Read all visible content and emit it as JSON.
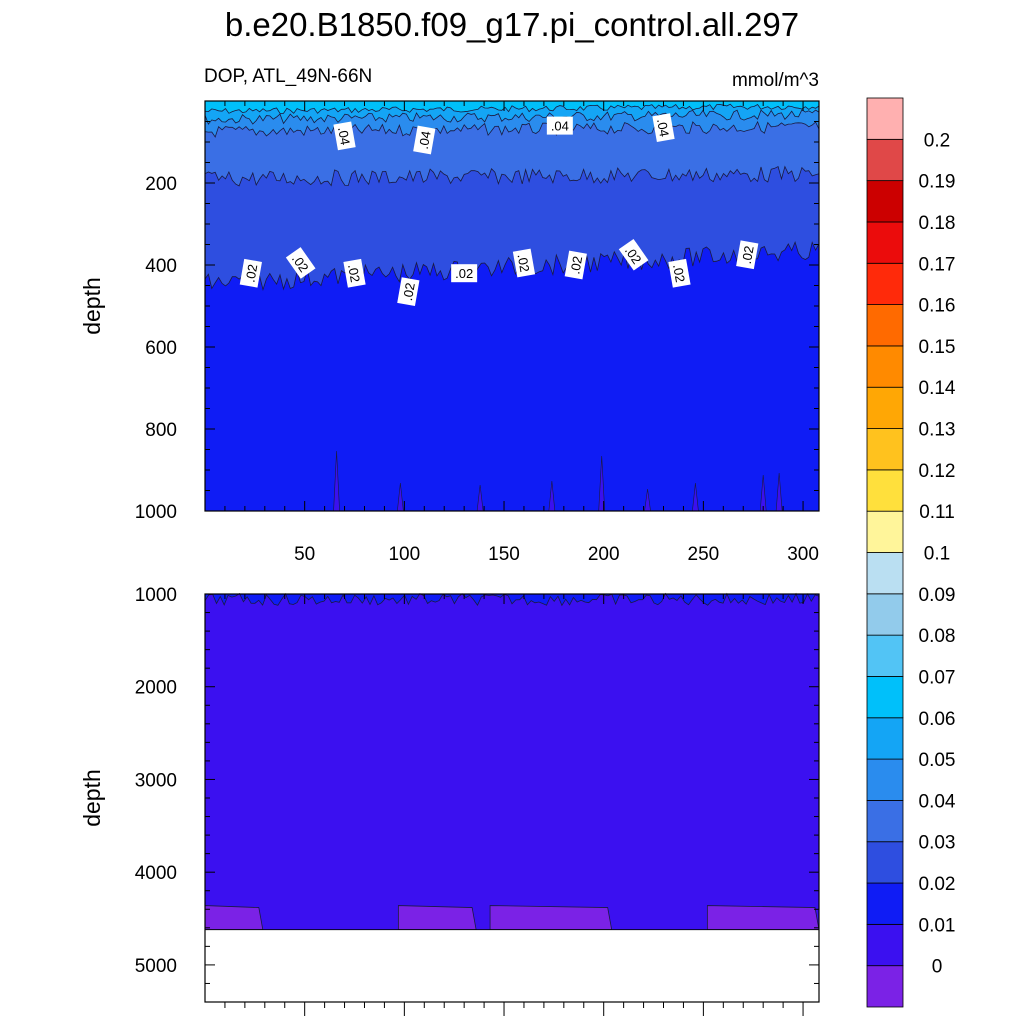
{
  "title": "b.e20.B1850.f09_g17.pi_control.all.297",
  "subtitle_left": "DOP, ATL_49N-66N",
  "subtitle_right": "mmol/m^3",
  "colors": {
    "lvl_0": "#7B22E6",
    "lvl_0_01": "#3B10F0",
    "lvl_0_02": "#0F1CF5",
    "lvl_0_03": "#2E4EE0",
    "lvl_0_04": "#3A6FE5",
    "lvl_0_05": "#2A8CEE",
    "lvl_0_06": "#14A5F5",
    "lvl_0_07": "#00C0FA"
  },
  "chart_data": [
    {
      "type": "contour",
      "panel": "upper",
      "variable": "DOP",
      "region": "ATL_49N-66N",
      "units": "mmol/m^3",
      "x_range": [
        0,
        308
      ],
      "y_range": [
        1000,
        0
      ],
      "y_inverted": true,
      "ylabel": "depth",
      "xlabel": "",
      "x_ticks": [
        50,
        100,
        150,
        200,
        250,
        300
      ],
      "y_ticks": [
        200,
        400,
        600,
        800,
        1000
      ],
      "regions": [
        {
          "value_range": "0.06-0.07",
          "depth_range": [
            0,
            25
          ]
        },
        {
          "value_range": "0.05-0.06",
          "depth_range": [
            25,
            45
          ]
        },
        {
          "value_range": "0.04-0.05",
          "depth_range": [
            45,
            75
          ]
        },
        {
          "value_range": "0.03-0.04",
          "depth_range": [
            75,
            190
          ]
        },
        {
          "value_range": "0.02-0.03",
          "depth_range": [
            190,
            400
          ]
        },
        {
          "value_range": "0.01-0.02",
          "depth_range": [
            400,
            1000
          ]
        }
      ],
      "contour_labels": [
        {
          "text": ".04",
          "x": 70,
          "depth": 85
        },
        {
          "text": ".04",
          "x": 110,
          "depth": 95
        },
        {
          "text": ".04",
          "x": 178,
          "depth": 60
        },
        {
          "text": ".04",
          "x": 230,
          "depth": 65
        },
        {
          "text": ".02",
          "x": 23,
          "depth": 420
        },
        {
          "text": ".02",
          "x": 48,
          "depth": 395
        },
        {
          "text": ".02",
          "x": 75,
          "depth": 420
        },
        {
          "text": ".02",
          "x": 102,
          "depth": 465
        },
        {
          "text": ".02",
          "x": 130,
          "depth": 420
        },
        {
          "text": ".02",
          "x": 160,
          "depth": 395
        },
        {
          "text": ".02",
          "x": 186,
          "depth": 400
        },
        {
          "text": ".02",
          "x": 215,
          "depth": 375
        },
        {
          "text": ".02",
          "x": 238,
          "depth": 420
        },
        {
          "text": ".02",
          "x": 272,
          "depth": 375
        }
      ]
    },
    {
      "type": "contour",
      "panel": "lower",
      "x_range": [
        0,
        308
      ],
      "y_range": [
        5400,
        1000
      ],
      "y_inverted": true,
      "ylabel": "depth",
      "xlabel": "",
      "y_ticks": [
        1000,
        2000,
        3000,
        4000,
        5000
      ],
      "data_bottom_depth": 4620,
      "regions": [
        {
          "value_range": "0.01-0.02",
          "depth_range": [
            1000,
            1120
          ]
        },
        {
          "value_range": "0-0.01",
          "depth_range": [
            1120,
            4620
          ]
        },
        {
          "value_range": "<0",
          "depth_range": [
            4350,
            4620
          ],
          "x_spans": [
            [
              0,
              29
            ],
            [
              97,
              136
            ],
            [
              143,
              204
            ],
            [
              252,
              308
            ]
          ]
        }
      ]
    },
    {
      "type": "colorbar",
      "levels": [
        "0",
        "0.01",
        "0.02",
        "0.03",
        "0.04",
        "0.05",
        "0.06",
        "0.07",
        "0.08",
        "0.09",
        "0.1",
        "0.11",
        "0.12",
        "0.13",
        "0.14",
        "0.15",
        "0.16",
        "0.17",
        "0.18",
        "0.19",
        "0.2"
      ],
      "colors": [
        "#7B22E6",
        "#3B10F0",
        "#0F1CF5",
        "#2E4EE0",
        "#3A6FE5",
        "#2A8CEE",
        "#14A5F5",
        "#00C0FA",
        "#52C4F5",
        "#92CBEB",
        "#BADFF2",
        "#FFF59A",
        "#FFE03C",
        "#FFC21E",
        "#FFA705",
        "#FF8A00",
        "#FF6A00",
        "#FF2A0A",
        "#EB0C0C",
        "#CC0000",
        "#E04848",
        "#FFB0B0"
      ]
    }
  ]
}
